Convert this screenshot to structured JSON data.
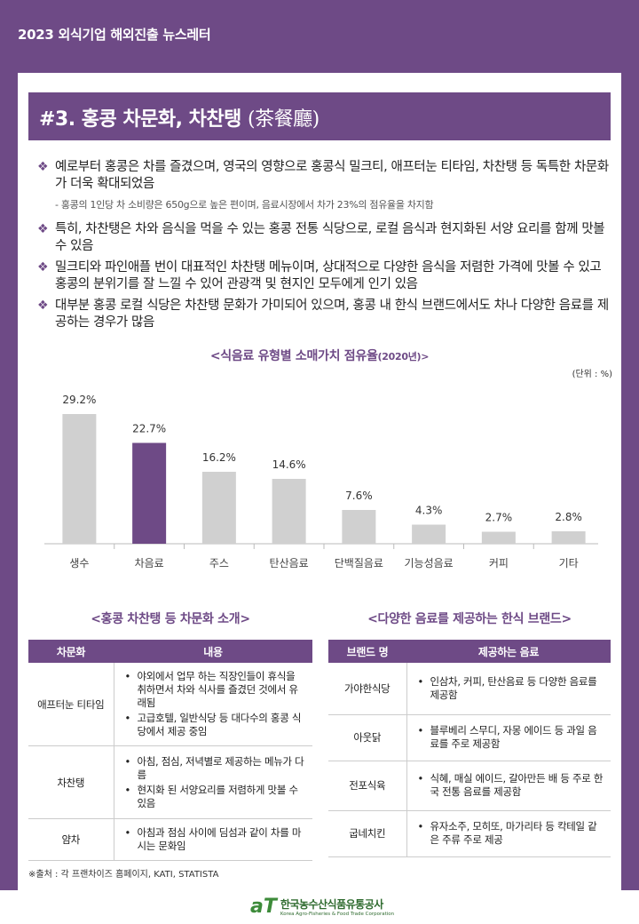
{
  "header": {
    "publication": "2023 외식기업 해외진출 뉴스레터"
  },
  "section": {
    "title": "#3. 홍콩 차문화, 차찬탱",
    "title_hanja": "(茶餐廳)"
  },
  "bullets": [
    {
      "text": "예로부터 홍콩은 차를 즐겼으며, 영국의 영향으로 홍콩식 밀크티, 애프터눈 티타임, 차찬탱 등 독특한 차문화가 더욱 확대되었음",
      "sub": "- 홍콩의 1인당 차 소비량은 650g으로 높은 편이며, 음료시장에서 차가 23%의 점유율을 차지함"
    },
    {
      "text": "특히, 차찬탱은 차와 음식을 먹을 수 있는 홍콩 전통 식당으로, 로컬 음식과 현지화된 서양 요리를 함께 맛볼 수 있음"
    },
    {
      "text": "밀크티와 파인애플 번이 대표적인 차찬탱 메뉴이며, 상대적으로 다양한 음식을 저렴한 가격에 맛볼 수 있고 홍콩의 분위기를 잘 느낄 수 있어 관광객 및 현지인 모두에게 인기 있음"
    },
    {
      "text": "대부분 홍콩 로컬 식당은 차찬탱 문화가 가미되어 있으며, 홍콩 내 한식 브랜드에서도 차나 다양한 음료를 제공하는 경우가 많음"
    }
  ],
  "bullet_mark": "❖",
  "chart_data": {
    "type": "bar",
    "title": "<식음료 유형별 소매가치 점유율",
    "title_year": "(2020년)>",
    "unit": "(단위 : %)",
    "categories": [
      "생수",
      "차음료",
      "주스",
      "탄산음료",
      "단백질음료",
      "기능성음료",
      "커피",
      "기타"
    ],
    "values": [
      29.2,
      22.7,
      16.2,
      14.6,
      7.6,
      4.3,
      2.7,
      2.8
    ],
    "value_labels": [
      "29.2%",
      "22.7%",
      "16.2%",
      "14.6%",
      "7.6%",
      "4.3%",
      "2.7%",
      "2.8%"
    ],
    "highlight_index": 1,
    "colors": {
      "bar": "#d0d0d0",
      "highlight": "#6e4a86"
    },
    "ylim": [
      0,
      35
    ],
    "grid": false
  },
  "tea_table": {
    "title": "<홍콩 차찬탱 등 차문화 소개>",
    "headers": [
      "차문화",
      "내용"
    ],
    "rows": [
      {
        "name": "애프터눈 티타임",
        "items": [
          "야외에서 업무 하는 직장인들이 휴식을 취하면서 차와 식사를 즐겼던 것에서 유래됨",
          "고급호텔, 일반식당 등 대다수의 홍콩 식당에서 제공 중임"
        ]
      },
      {
        "name": "차찬탱",
        "items": [
          "아침, 점심, 저녁별로 제공하는 메뉴가 다름",
          "현지화 된 서양요리를 저렴하게 맛볼 수 있음"
        ]
      },
      {
        "name": "얌차",
        "items": [
          "아침과 점심 사이에 딤섬과 같이 차를 마시는 문화임"
        ]
      }
    ]
  },
  "brand_table": {
    "title": "<다양한 음료를 제공하는 한식 브랜드>",
    "headers": [
      "브랜드 명",
      "제공하는 음료"
    ],
    "rows": [
      {
        "name": "가야한식당",
        "items": [
          "인삼차, 커피, 탄산음료 등 다양한 음료를 제공함"
        ]
      },
      {
        "name": "아웃닭",
        "items": [
          "블루베리 스무디, 자몽 에이드 등 과일 음료를 주로 제공함"
        ]
      },
      {
        "name": "전포식육",
        "items": [
          "식혜, 매실 에이드, 갈아만든 배 등 주로 한국 전통 음료를 제공함"
        ]
      },
      {
        "name": "굽네치킨",
        "items": [
          "유자소주, 모히또, 마가리타 등 칵테일 같은 주류 주로 제공"
        ]
      }
    ]
  },
  "source": "※출처 : 각 프랜차이즈 홈페이지, KATI, STATISTA",
  "footer": {
    "logo_mark": "aT",
    "org_kr": "한국농수산식품유통공사",
    "org_en": "Korea Agro-Fisheries & Food Trade Corporation"
  }
}
